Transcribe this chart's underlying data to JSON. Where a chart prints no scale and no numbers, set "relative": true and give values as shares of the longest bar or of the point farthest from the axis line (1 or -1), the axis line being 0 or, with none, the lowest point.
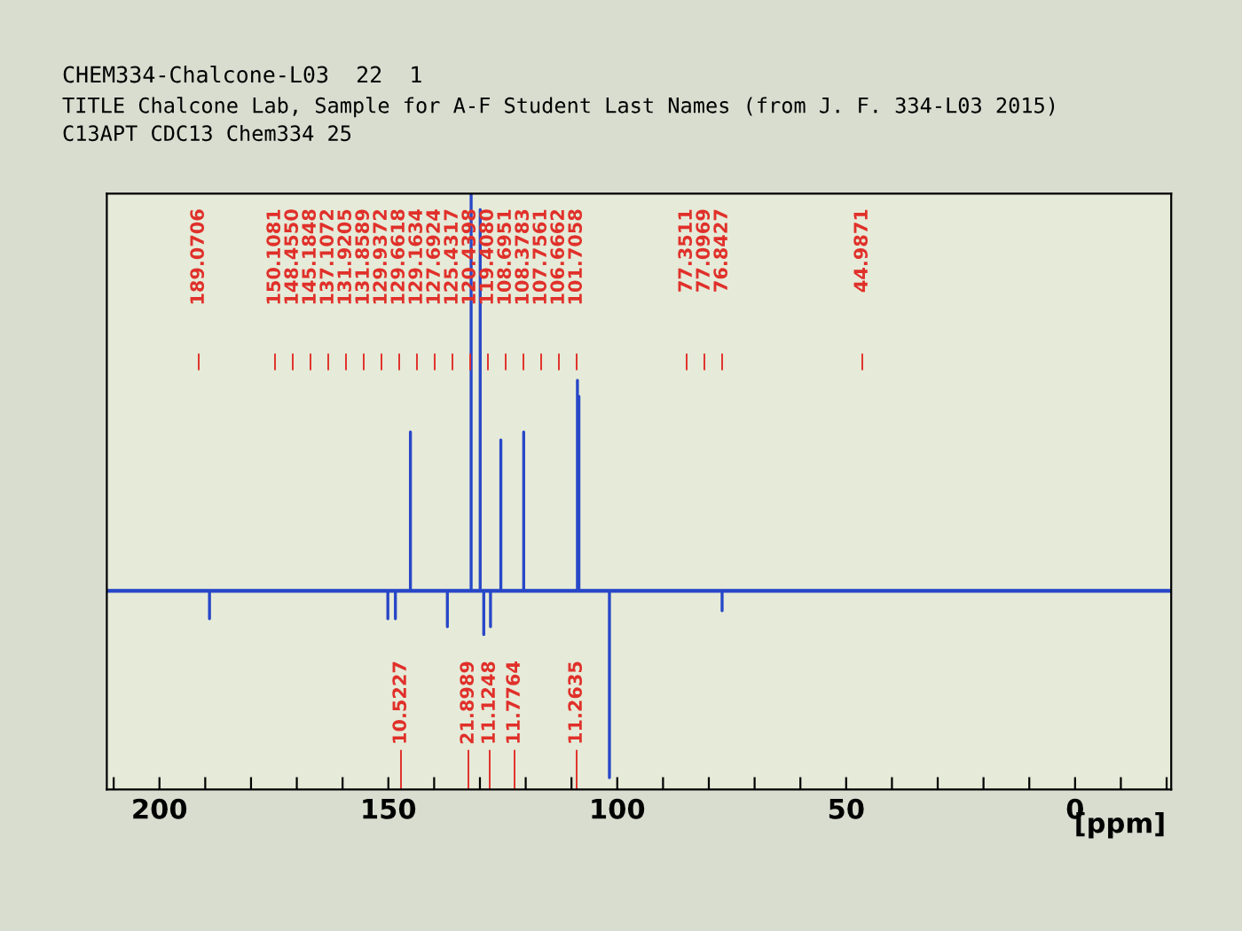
{
  "chart_data": {
    "type": "line",
    "title": "CHEM334-Chalcone-L03  22  1",
    "subtitle": "TITLE Chalcone Lab, Sample for A-F Student Last Names (from J. F. 334-L03 2015)",
    "annotations": [
      "C13APT CDC13 Chem334 25",
      "189.0706",
      "150.1081",
      "148.4550",
      "145.1848",
      "137.1072",
      "131.9205",
      "131.8589",
      "129.9372",
      "129.6618",
      "129.1634",
      "127.6924",
      "125.4317",
      "120.4398",
      "119.4080",
      "108.6951",
      "108.3783",
      "107.7561",
      "106.6662",
      "101.7058",
      "77.3511",
      "77.0969",
      "76.8427",
      "44.9871",
      "10.5227",
      "21.8989",
      "11.1248",
      "11.7764",
      "11.2635"
    ],
    "xlabel": "[ppm]",
    "relative": true,
    "tick_labels": "x",
    "xlim": [
      211.5,
      -21
    ],
    "xticks": [
      {
        "value": 210,
        "label": null
      },
      200,
      {
        "value": 190,
        "label": null
      },
      {
        "value": 180,
        "label": null
      },
      {
        "value": 170,
        "label": null
      },
      {
        "value": 160,
        "label": null
      },
      150,
      {
        "value": 140,
        "label": null
      },
      {
        "value": 130,
        "label": null
      },
      {
        "value": 120,
        "label": null
      },
      {
        "value": 110,
        "label": null
      },
      100,
      {
        "value": 90,
        "label": null
      },
      {
        "value": 80,
        "label": null
      },
      {
        "value": 70,
        "label": null
      },
      {
        "value": 60,
        "label": null
      },
      50,
      {
        "value": 40,
        "label": null
      },
      {
        "value": 30,
        "label": null
      },
      {
        "value": 20,
        "label": null
      },
      {
        "value": 10,
        "label": null
      },
      0,
      {
        "value": -10,
        "label": null
      },
      {
        "value": -20,
        "label": null
      }
    ],
    "ref_lines": [
      {
        "axis": "y",
        "value": 0,
        "color": "#2747c8"
      }
    ],
    "marker": "none",
    "line_style": "solid",
    "grid": false,
    "legend": false,
    "series": [
      {
        "color": "#2747c8",
        "x": [
          211.5,
          189.07,
          189.07,
          189.07,
          150.11,
          150.11,
          150.11,
          148.46,
          148.46,
          148.46,
          145.18,
          145.18,
          145.18,
          137.11,
          137.11,
          137.11,
          131.92,
          131.92,
          131.92,
          129.94,
          129.94,
          129.94,
          129.16,
          129.16,
          129.16,
          127.69,
          127.69,
          127.69,
          125.43,
          125.43,
          125.43,
          120.44,
          120.44,
          120.44,
          108.7,
          108.7,
          108.7,
          108.38,
          108.38,
          108.38,
          101.71,
          101.71,
          101.71,
          77.1,
          77.1,
          77.1,
          -21
        ],
        "values": [
          0,
          0,
          -0.07,
          0,
          0,
          -0.07,
          0,
          0,
          -0.07,
          0,
          0,
          0.4,
          0,
          0,
          -0.09,
          0,
          0,
          1.0,
          0,
          0,
          0.96,
          0,
          0,
          -0.11,
          0,
          0,
          -0.09,
          0,
          0,
          0.38,
          0,
          0,
          0.4,
          0,
          0,
          0.53,
          0,
          0,
          0.49,
          0,
          0,
          -0.47,
          0,
          0,
          -0.05,
          0,
          0
        ]
      }
    ]
  }
}
